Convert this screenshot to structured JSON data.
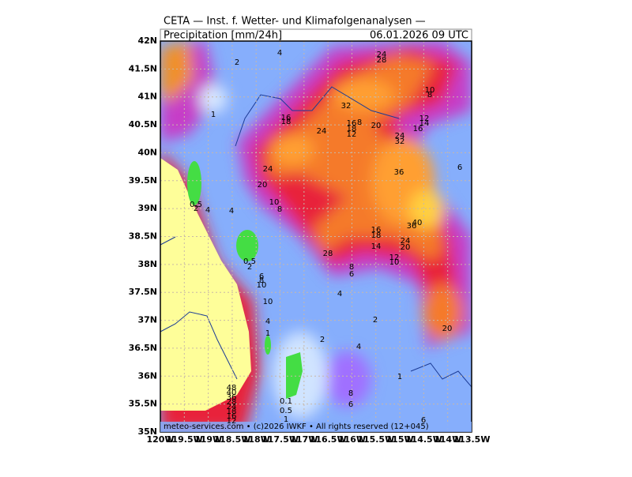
{
  "header": {
    "title": "CETA — Inst. f. Wetter- und Klimafolgenanalysen —",
    "subtitle": "Precipitation [mm/24h]",
    "valid_time": "06.01.2026 09 UTC"
  },
  "axes": {
    "longitudes": [
      "120W",
      "119.5W",
      "119W",
      "118.5W",
      "118W",
      "117.5W",
      "117W",
      "116.5W",
      "116W",
      "115.5W",
      "115W",
      "114.5W",
      "114W",
      "113.5W"
    ],
    "latitudes": [
      "35N",
      "35.5N",
      "36N",
      "36.5N",
      "37N",
      "37.5N",
      "38N",
      "38.5N",
      "39N",
      "39.5N",
      "40N",
      "40.5N",
      "41N",
      "41.5N",
      "42N"
    ]
  },
  "contour_labels": [
    "2",
    "4",
    "24",
    "28",
    "10",
    "8",
    "1",
    "32",
    "16",
    "18",
    "24",
    "16",
    "18",
    "12",
    "8",
    "20",
    "12",
    "14",
    "16",
    "24",
    "32",
    "24",
    "20",
    "36",
    "6",
    "10",
    "8",
    "0.5",
    "2",
    "4",
    "4",
    "40",
    "36",
    "16",
    "18",
    "24",
    "20",
    "14",
    "28",
    "0.5",
    "2",
    "12",
    "10",
    "8",
    "6",
    "6",
    "8",
    "10",
    "4",
    "10",
    "4",
    "2",
    "20",
    "1",
    "2",
    "4",
    "1",
    "48",
    "40",
    "36",
    "28",
    "24",
    "18",
    "16",
    "12",
    "8",
    "6",
    "0.1",
    "0.5",
    "1",
    "6"
  ],
  "footer": "meteo-services.com • (c)2026 IWKF • All rights reserved (12+045)"
}
